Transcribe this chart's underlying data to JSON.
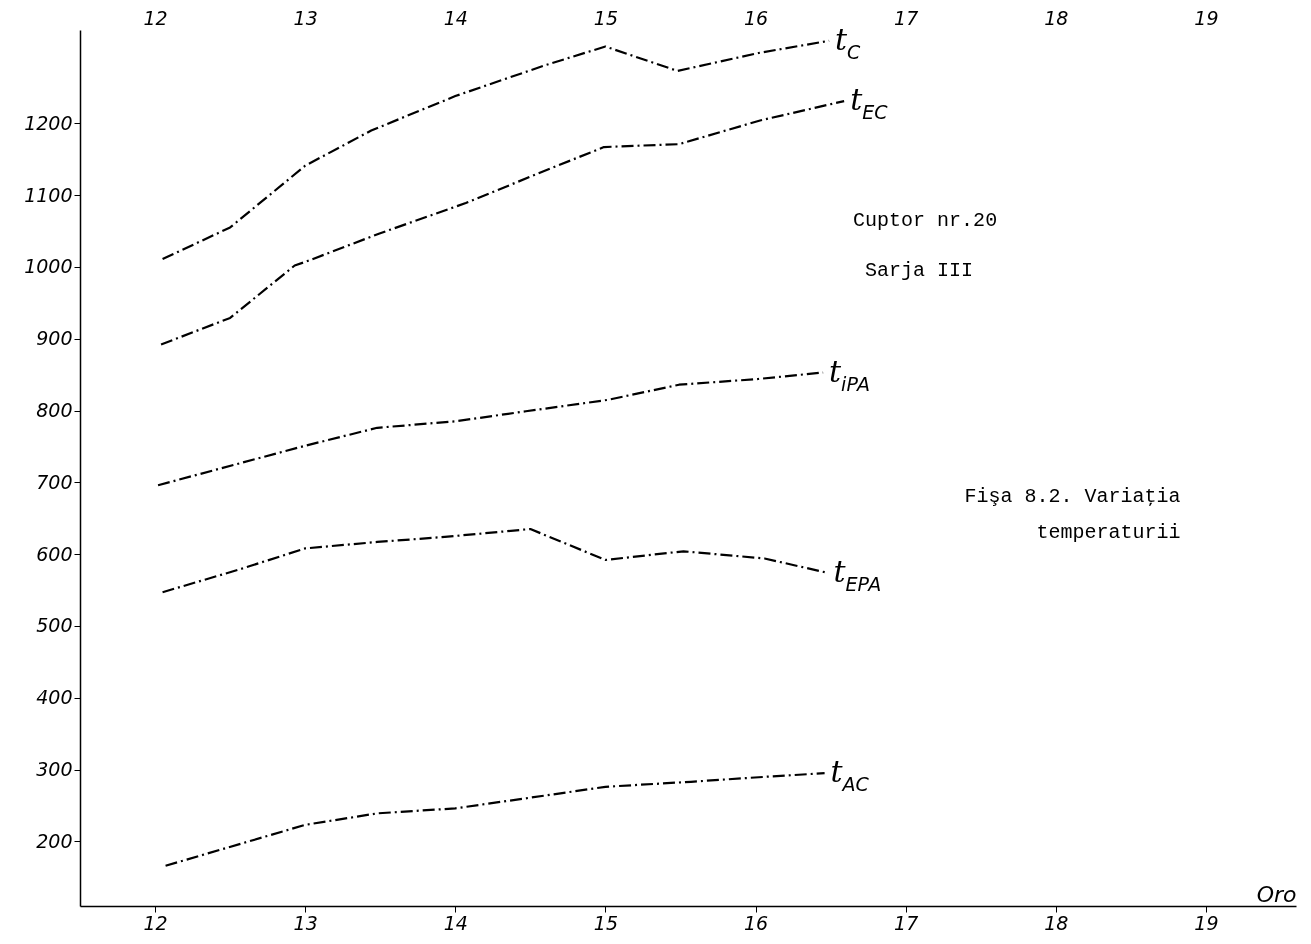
{
  "chart_data": {
    "type": "line",
    "xlabel": "Oro",
    "xlim": [
      11.5,
      19.6
    ],
    "xticks": [
      12,
      13,
      14,
      15,
      16,
      17,
      18,
      19
    ],
    "x2lim": [
      11.5,
      19.6
    ],
    "x2ticks": [
      12,
      13,
      14,
      15,
      16,
      17,
      18,
      19
    ],
    "ylim": [
      110,
      1330
    ],
    "yticks": [
      200,
      300,
      400,
      500,
      600,
      700,
      800,
      900,
      1000,
      1100,
      1200
    ],
    "grid": false,
    "marker": "none",
    "line_style": "dashed",
    "series": [
      {
        "name": "t$_{C}$",
        "color": "#000000",
        "x": [
          12.05,
          12.5,
          13,
          13.44,
          14,
          14.6,
          15,
          15.48,
          16.02,
          16.49
        ],
        "values": [
          1011,
          1055,
          1141,
          1190,
          1238,
          1281,
          1307,
          1273,
          1298,
          1315
        ]
      },
      {
        "name": "t$_{EC}$",
        "color": "#000000",
        "x": [
          12.04,
          12.5,
          12.93,
          13,
          13.5,
          14.07,
          14.55,
          14.99,
          15.49,
          16.03,
          16.59
        ],
        "values": [
          892,
          929,
          1002,
          1007,
          1047,
          1089,
          1130,
          1167,
          1171,
          1204,
          1231
        ]
      },
      {
        "name": "t$_{iPA}$",
        "color": "#000000",
        "x": [
          12.02,
          13,
          13.48,
          14,
          14.47,
          15.02,
          15.49,
          16.02,
          16.45
        ],
        "values": [
          696,
          751,
          776,
          785,
          799,
          815,
          836,
          844,
          853
        ]
      },
      {
        "name": "t$_{EPA}$",
        "color": "#000000",
        "x": [
          12.05,
          12.55,
          13,
          13.48,
          13.93,
          14.5,
          15,
          15.52,
          16.06,
          16.48
        ],
        "values": [
          547,
          578,
          608,
          617,
          624,
          635,
          592,
          604,
          594,
          574
        ]
      },
      {
        "name": "t$_{AC}$",
        "color": "#000000",
        "x": [
          12.07,
          13,
          13.48,
          14,
          14.47,
          15,
          15.57,
          16.07,
          16.46
        ],
        "values": [
          166,
          223,
          239,
          246,
          260,
          276,
          283,
          290,
          295
        ]
      }
    ],
    "annotations": [
      "Cuptor nr.20",
      "Sarja III",
      "Fişa 8.2. Variaţia temperaturii"
    ]
  }
}
